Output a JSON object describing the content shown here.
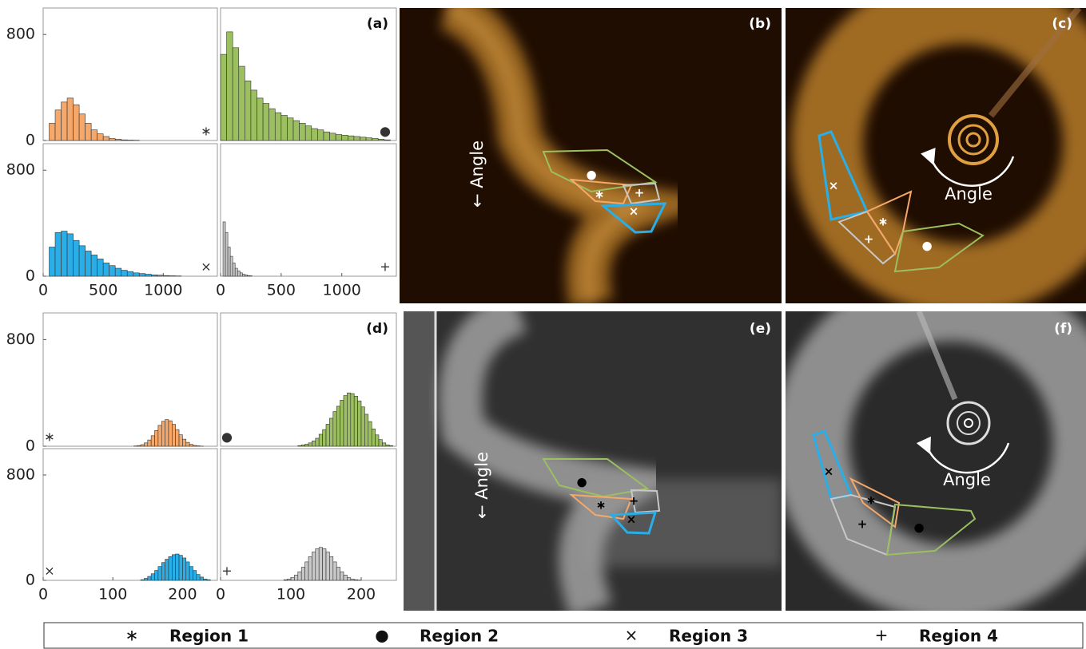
{
  "chart_data": [
    {
      "type": "histogram",
      "color": "#f5a86a",
      "marker": "∗",
      "marker_corner": "bottom-right",
      "bins": [
        0,
        50,
        100,
        150,
        200,
        250,
        300,
        350,
        400,
        450,
        500,
        550,
        600,
        650,
        700,
        750,
        800,
        850,
        900,
        950,
        1000,
        1050,
        1100,
        1150,
        1200,
        1250,
        1300,
        1350,
        1400
      ],
      "values": [
        0,
        130,
        230,
        290,
        320,
        270,
        200,
        130,
        80,
        50,
        30,
        15,
        10,
        5,
        3,
        2,
        0,
        0,
        0,
        0,
        0,
        0,
        0,
        0,
        0,
        0,
        0,
        0
      ],
      "xlim": [
        0,
        1450
      ],
      "ylim": [
        0,
        1000
      ],
      "yticks": [
        0,
        800
      ]
    },
    {
      "type": "histogram",
      "color": "#9cbf60",
      "marker": "●",
      "marker_corner": "bottom-right",
      "label": "(a)",
      "bins": [
        0,
        50,
        100,
        150,
        200,
        250,
        300,
        350,
        400,
        450,
        500,
        550,
        600,
        650,
        700,
        750,
        800,
        850,
        900,
        950,
        1000,
        1050,
        1100,
        1150,
        1200,
        1250,
        1300,
        1350,
        1400
      ],
      "values": [
        650,
        820,
        700,
        560,
        450,
        380,
        320,
        280,
        240,
        210,
        190,
        170,
        150,
        130,
        110,
        90,
        80,
        65,
        55,
        45,
        40,
        35,
        30,
        25,
        20,
        15,
        10,
        5
      ],
      "xlim": [
        0,
        1450
      ],
      "ylim": [
        0,
        1000
      ]
    },
    {
      "type": "histogram",
      "color": "#2aaee8",
      "marker": "×",
      "marker_corner": "bottom-right",
      "bins": [
        0,
        50,
        100,
        150,
        200,
        250,
        300,
        350,
        400,
        450,
        500,
        550,
        600,
        650,
        700,
        750,
        800,
        850,
        900,
        950,
        1000,
        1050,
        1100,
        1150,
        1200,
        1250,
        1300,
        1350,
        1400
      ],
      "values": [
        0,
        220,
        330,
        340,
        320,
        270,
        230,
        190,
        160,
        130,
        100,
        80,
        60,
        45,
        35,
        25,
        20,
        15,
        10,
        8,
        5,
        3,
        2,
        0,
        0,
        0,
        0,
        0
      ],
      "xlim": [
        0,
        1450
      ],
      "ylim": [
        0,
        1000
      ],
      "yticks": [
        0,
        800
      ],
      "xticks": [
        0,
        500,
        1000
      ]
    },
    {
      "type": "histogram",
      "color": "#c8c8c8",
      "marker": "+",
      "marker_corner": "bottom-right",
      "bins": [
        20,
        40,
        60,
        80,
        100,
        120,
        140,
        160,
        180,
        200,
        220,
        240,
        260
      ],
      "values": [
        410,
        330,
        220,
        150,
        100,
        60,
        40,
        25,
        15,
        10,
        5,
        3
      ],
      "xlim": [
        0,
        1450
      ],
      "ylim": [
        0,
        1000
      ],
      "xticks": [
        0,
        500,
        1000
      ]
    },
    {
      "type": "histogram",
      "color": "#f5a86a",
      "marker": "∗",
      "marker_corner": "bottom-left",
      "bins": [
        130,
        135,
        140,
        145,
        150,
        155,
        160,
        165,
        170,
        175,
        180,
        185,
        190,
        195,
        200,
        205,
        210,
        215,
        220,
        225,
        230,
        235,
        240
      ],
      "values": [
        2,
        5,
        12,
        25,
        47,
        79,
        118,
        157,
        187,
        200,
        191,
        164,
        125,
        86,
        53,
        29,
        14,
        6,
        3,
        1,
        0,
        0
      ],
      "xlim": [
        0,
        250
      ],
      "ylim": [
        0,
        1000
      ],
      "yticks": [
        0,
        800
      ]
    },
    {
      "type": "histogram",
      "color": "#9cbf60",
      "marker": "●",
      "marker_corner": "bottom-left",
      "label": "(d)",
      "bins": [
        110,
        115,
        120,
        125,
        130,
        135,
        140,
        145,
        150,
        155,
        160,
        165,
        170,
        175,
        180,
        185,
        190,
        195,
        200,
        205,
        210,
        215,
        220,
        225,
        230,
        235,
        240,
        245
      ],
      "values": [
        5,
        10,
        15,
        25,
        40,
        60,
        90,
        125,
        165,
        210,
        260,
        300,
        345,
        380,
        400,
        395,
        375,
        340,
        295,
        240,
        185,
        130,
        85,
        50,
        25,
        10,
        5
      ],
      "xlim": [
        0,
        250
      ],
      "ylim": [
        0,
        1000
      ]
    },
    {
      "type": "histogram",
      "color": "#2aaee8",
      "marker": "×",
      "marker_corner": "bottom-left",
      "bins": [
        140,
        145,
        150,
        155,
        160,
        165,
        170,
        175,
        180,
        185,
        190,
        195,
        200,
        205,
        210,
        215,
        220,
        225,
        230,
        235,
        240
      ],
      "values": [
        5,
        15,
        30,
        50,
        75,
        105,
        135,
        160,
        180,
        195,
        200,
        190,
        170,
        140,
        105,
        75,
        45,
        25,
        10,
        5
      ],
      "xlim": [
        0,
        250
      ],
      "ylim": [
        0,
        1000
      ],
      "yticks": [
        0,
        800
      ],
      "xticks": [
        0,
        100,
        200
      ]
    },
    {
      "type": "histogram",
      "color": "#c8c8c8",
      "marker": "+",
      "marker_corner": "bottom-left",
      "bins": [
        90,
        95,
        100,
        105,
        110,
        115,
        120,
        125,
        130,
        135,
        140,
        145,
        150,
        155,
        160,
        165,
        170,
        175,
        180,
        185,
        190,
        195,
        200
      ],
      "values": [
        5,
        10,
        20,
        40,
        65,
        100,
        140,
        180,
        215,
        240,
        250,
        240,
        215,
        180,
        140,
        100,
        65,
        40,
        20,
        10,
        5,
        2
      ],
      "xlim": [
        0,
        250
      ],
      "ylim": [
        0,
        1000
      ],
      "xticks": [
        0,
        100,
        200
      ]
    }
  ],
  "images": [
    {
      "label": "(b)",
      "annotation": "← Angle"
    },
    {
      "label": "(c)",
      "annotation": "Angle"
    },
    {
      "label": "(e)",
      "annotation": "← Angle"
    },
    {
      "label": "(f)",
      "annotation": "Angle"
    }
  ],
  "legend": [
    {
      "symbol": "∗",
      "label": "Region 1"
    },
    {
      "symbol": "●",
      "label": "Region 2"
    },
    {
      "symbol": "×",
      "label": "Region 3"
    },
    {
      "symbol": "+",
      "label": "Region 4"
    }
  ]
}
